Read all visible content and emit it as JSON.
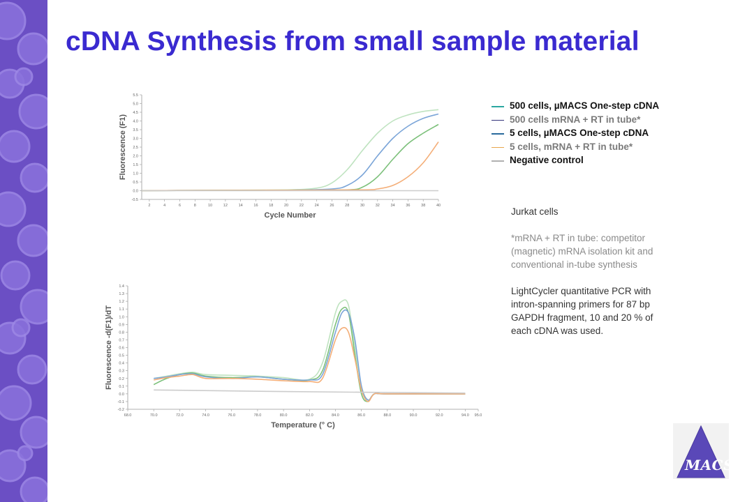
{
  "title": "cDNA Synthesis from small sample material",
  "legend": [
    {
      "label": "500 cells, µMACS One-step cDNA",
      "color": "#2aa7a0",
      "text_color": "#111111"
    },
    {
      "label": "500 cells mRNA + RT in tube*",
      "color": "#33337a",
      "text_color": "#7a7a7a"
    },
    {
      "label": "5 cells, µMACS One-step cDNA",
      "color": "#2a6a9c",
      "text_color": "#111111"
    },
    {
      "label": "5 cells, mRNA + RT in tube*",
      "color": "#e8a64c",
      "text_color": "#7a7a7a"
    },
    {
      "label": "Negative control",
      "color": "#b0b0b0",
      "text_color": "#111111"
    }
  ],
  "notes": {
    "cells": "Jurkat cells",
    "footnote": "*mRNA + RT in tube: competitor (magnetic) mRNA isolation kit and conventional in-tube synthesis",
    "method": "LightCycler quantitative PCR with intron-spanning primers for 87 bp GAPDH fragment, 10 and 20 % of each cDNA was used."
  },
  "logo": {
    "text": "MACS"
  },
  "chart_data": [
    {
      "type": "line",
      "xlabel": "Cycle Number",
      "ylabel": "Fluorescence (F1)",
      "xlim": [
        1,
        40
      ],
      "ylim": [
        -0.5,
        5.5
      ],
      "xticks": [
        2,
        4,
        6,
        8,
        10,
        12,
        14,
        16,
        18,
        20,
        22,
        24,
        26,
        28,
        30,
        32,
        34,
        36,
        38,
        40
      ],
      "yticks": [
        -0.5,
        0.0,
        0.5,
        1.0,
        1.5,
        2.0,
        2.5,
        3.0,
        3.5,
        4.0,
        4.5,
        5.0,
        5.5
      ],
      "series": [
        {
          "color": "#bfe3c0",
          "x": [
            1,
            10,
            20,
            24,
            26,
            28,
            30,
            32,
            34,
            36,
            38,
            40
          ],
          "y": [
            0.0,
            0.02,
            0.05,
            0.15,
            0.45,
            1.2,
            2.3,
            3.3,
            4.0,
            4.35,
            4.55,
            4.65
          ]
        },
        {
          "color": "#7ba5d8",
          "x": [
            1,
            10,
            20,
            26,
            28,
            30,
            32,
            34,
            36,
            38,
            40
          ],
          "y": [
            0.0,
            0.02,
            0.03,
            0.1,
            0.3,
            0.9,
            2.0,
            3.0,
            3.7,
            4.15,
            4.4
          ]
        },
        {
          "color": "#7cc07a",
          "x": [
            1,
            10,
            20,
            28,
            30,
            32,
            34,
            36,
            38,
            40
          ],
          "y": [
            0.0,
            0.02,
            0.03,
            0.05,
            0.2,
            0.8,
            1.8,
            2.7,
            3.3,
            3.8
          ]
        },
        {
          "color": "#f4ae78",
          "x": [
            1,
            10,
            20,
            30,
            32,
            34,
            36,
            38,
            40
          ],
          "y": [
            0.0,
            0.02,
            0.03,
            0.05,
            0.1,
            0.3,
            0.8,
            1.6,
            2.8
          ]
        },
        {
          "color": "#cccccc",
          "x": [
            1,
            20,
            40
          ],
          "y": [
            0.0,
            0.0,
            0.0
          ]
        }
      ]
    },
    {
      "type": "line",
      "xlabel": "Temperature (° C)",
      "ylabel": "Fluorescence -d(F1)/dT",
      "xlim": [
        68.0,
        95.0
      ],
      "ylim": [
        -0.2,
        1.4
      ],
      "xticks": [
        68.0,
        70.0,
        72.0,
        74.0,
        76.0,
        78.0,
        80.0,
        82.0,
        84.0,
        86.0,
        88.0,
        90.0,
        92.0,
        94.0,
        95.0
      ],
      "yticks": [
        -0.2,
        -0.1,
        0.0,
        0.1,
        0.2,
        0.3,
        0.4,
        0.5,
        0.6,
        0.7,
        0.8,
        0.9,
        1.0,
        1.1,
        1.2,
        1.3,
        1.4
      ],
      "series": [
        {
          "color": "#bfe3c0",
          "x": [
            70,
            71,
            72,
            73,
            74,
            76,
            78,
            80,
            82,
            83,
            84,
            84.5,
            85,
            85.5,
            86,
            86.5,
            87,
            88,
            94
          ],
          "y": [
            0.2,
            0.23,
            0.26,
            0.28,
            0.25,
            0.24,
            0.23,
            0.21,
            0.19,
            0.4,
            1.05,
            1.2,
            1.15,
            0.6,
            0.1,
            -0.08,
            0.0,
            0.0,
            0.0
          ]
        },
        {
          "color": "#7cc07a",
          "x": [
            70,
            71,
            72,
            73,
            74,
            76,
            78,
            80,
            82,
            83,
            84,
            84.5,
            85,
            85.5,
            86,
            86.5,
            87,
            88,
            94
          ],
          "y": [
            0.12,
            0.2,
            0.25,
            0.27,
            0.23,
            0.21,
            0.22,
            0.19,
            0.18,
            0.3,
            0.9,
            1.1,
            1.05,
            0.5,
            0.0,
            -0.1,
            0.0,
            0.0,
            0.0
          ]
        },
        {
          "color": "#7ba5d8",
          "x": [
            70,
            71,
            72,
            73,
            74,
            76,
            78,
            80,
            82,
            83,
            84,
            84.5,
            85,
            85.5,
            86,
            86.5,
            87,
            88,
            94
          ],
          "y": [
            0.2,
            0.22,
            0.25,
            0.26,
            0.22,
            0.2,
            0.22,
            0.19,
            0.18,
            0.25,
            0.8,
            1.05,
            1.05,
            0.7,
            0.1,
            -0.08,
            0.0,
            0.0,
            0.0
          ]
        },
        {
          "color": "#f4ae78",
          "x": [
            70,
            71,
            72,
            73,
            74,
            76,
            78,
            80,
            82,
            83,
            84,
            84.5,
            85,
            85.5,
            86,
            86.5,
            87,
            88,
            94
          ],
          "y": [
            0.18,
            0.21,
            0.23,
            0.25,
            0.2,
            0.2,
            0.19,
            0.17,
            0.16,
            0.2,
            0.7,
            0.85,
            0.8,
            0.45,
            0.05,
            -0.1,
            0.0,
            0.0,
            0.0
          ]
        },
        {
          "color": "#cccccc",
          "x": [
            70,
            80,
            94
          ],
          "y": [
            0.05,
            0.03,
            0.01
          ]
        }
      ]
    }
  ]
}
